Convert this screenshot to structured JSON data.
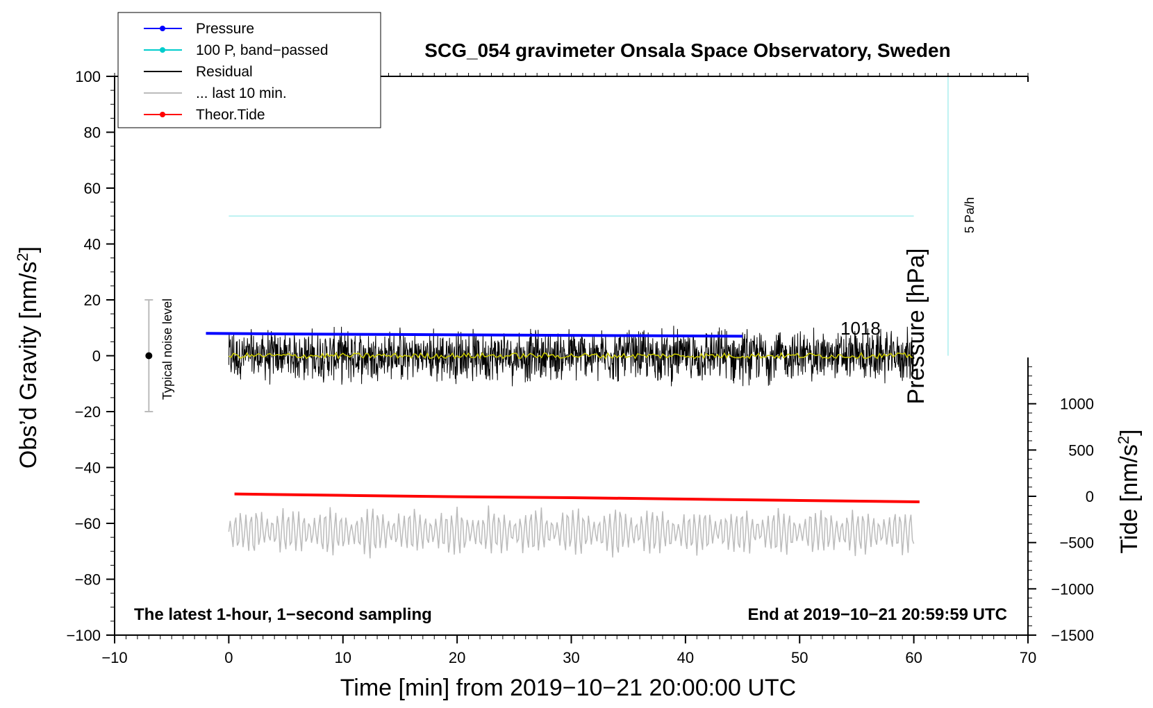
{
  "chart_data": {
    "type": "line",
    "title": "SCG_054 gravimeter Onsala Space Observatory, Sweden",
    "xlabel": "Time [min] from 2019−10−21 20:00:00 UTC",
    "ylabel_left": "Obs’d Gravity [nm/s",
    "ylabel_left_sup": "2",
    "ylabel_left_end": "]",
    "ylabel_right": "Tide [nm/s",
    "ylabel_right_sup": "2",
    "ylabel_right_end": "]",
    "ylabel_pressure": "Pressure [hPa]",
    "xlim": [
      -10,
      70
    ],
    "ylim": [
      -100,
      100
    ],
    "right_ylim": [
      -1500,
      1500
    ],
    "x_ticks": [
      -10,
      0,
      10,
      20,
      30,
      40,
      50,
      60,
      70
    ],
    "x_tick_labels": [
      "−10",
      "0",
      "10",
      "20",
      "30",
      "40",
      "50",
      "60",
      "70"
    ],
    "y_ticks": [
      -100,
      -80,
      -60,
      -40,
      -20,
      0,
      20,
      40,
      60,
      80,
      100
    ],
    "y_tick_labels": [
      "−100",
      "−80",
      "−60",
      "−40",
      "−20",
      "0",
      "20",
      "40",
      "60",
      "80",
      "100"
    ],
    "right_y_ticks": [
      -1500,
      -1000,
      -500,
      0,
      500,
      1000
    ],
    "right_y_tick_labels": [
      "−1500",
      "−1000",
      "−500",
      "0",
      "500",
      "1000"
    ],
    "pressure_label": "1018",
    "rate_label": "5 Pa/h",
    "noise_label": "Typical noise level",
    "noise_bar": {
      "x": -7,
      "center": 0,
      "low": -20,
      "high": 20
    },
    "footer_left": "The latest 1-hour, 1−second sampling",
    "footer_right": "End at 2019−10−21 20:59:59 UTC",
    "legend": [
      {
        "label": "Pressure",
        "color": "#0000ff",
        "marker": true
      },
      {
        "label": "100 P, band−passed",
        "color": "#00cccc",
        "marker": true
      },
      {
        "label": "Residual",
        "color": "#000000",
        "marker": false
      },
      {
        "label": "... last 10 min.",
        "color": "#bbbbbb",
        "marker": false
      },
      {
        "label": "Theor.Tide",
        "color": "#ff0000",
        "marker": true
      }
    ],
    "series": [
      {
        "name": "Pressure",
        "color": "#0000ff",
        "x": [
          -2,
          5,
          15,
          25,
          35,
          45
        ],
        "y": [
          8,
          7.8,
          7.6,
          7.4,
          7.2,
          7.0
        ]
      },
      {
        "name": "100 P, band-passed",
        "color": "#aaeeee",
        "x": [
          0,
          60
        ],
        "y": [
          50,
          50
        ]
      },
      {
        "name": "Theor.Tide",
        "color": "#ff0000",
        "axis": "right",
        "x": [
          0.5,
          10,
          20,
          30,
          40,
          50,
          60.5
        ],
        "y": [
          25,
          10,
          -5,
          -15,
          -30,
          -45,
          -60
        ]
      },
      {
        "name": "Residual",
        "color": "#000000",
        "x_range": [
          0,
          60
        ],
        "amplitude": 14
      },
      {
        "name": "Residual smoothed",
        "color": "#cccc00",
        "x_range": [
          0,
          60
        ],
        "amplitude": 2
      },
      {
        "name": "... last 10 min.",
        "color": "#bbbbbb",
        "x_range": [
          0,
          60
        ],
        "center": -63,
        "amplitude": 10
      },
      {
        "name": "5 Pa/h marker",
        "color": "#aaeeee",
        "x": [
          63,
          63
        ],
        "y": [
          0,
          100
        ]
      }
    ]
  }
}
